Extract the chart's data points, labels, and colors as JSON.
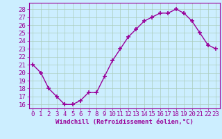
{
  "x": [
    0,
    1,
    2,
    3,
    4,
    5,
    6,
    7,
    8,
    9,
    10,
    11,
    12,
    13,
    14,
    15,
    16,
    17,
    18,
    19,
    20,
    21,
    22,
    23
  ],
  "y": [
    21,
    20,
    18,
    17,
    16,
    16,
    16.5,
    17.5,
    17.5,
    19.5,
    21.5,
    23,
    24.5,
    25.5,
    26.5,
    27,
    27.5,
    27.5,
    28,
    27.5,
    26.5,
    25,
    23.5,
    23
  ],
  "line_color": "#990099",
  "marker": "+",
  "marker_size": 4,
  "marker_linewidth": 1.2,
  "line_width": 1.0,
  "background_color": "#cceeff",
  "grid_color": "#aaccbb",
  "xlabel": "Windchill (Refroidissement éolien,°C)",
  "xlabel_fontsize": 6.5,
  "xtick_labels": [
    "0",
    "1",
    "2",
    "3",
    "4",
    "5",
    "6",
    "7",
    "8",
    "9",
    "10",
    "11",
    "12",
    "13",
    "14",
    "15",
    "16",
    "17",
    "18",
    "19",
    "20",
    "21",
    "22",
    "23"
  ],
  "ytick_vals": [
    16,
    17,
    18,
    19,
    20,
    21,
    22,
    23,
    24,
    25,
    26,
    27,
    28
  ],
  "ytick_labels": [
    "16",
    "17",
    "18",
    "19",
    "20",
    "21",
    "22",
    "23",
    "24",
    "25",
    "26",
    "27",
    "28"
  ],
  "ylim": [
    15.5,
    28.8
  ],
  "xlim": [
    -0.5,
    23.5
  ],
  "tick_fontsize": 6.5
}
